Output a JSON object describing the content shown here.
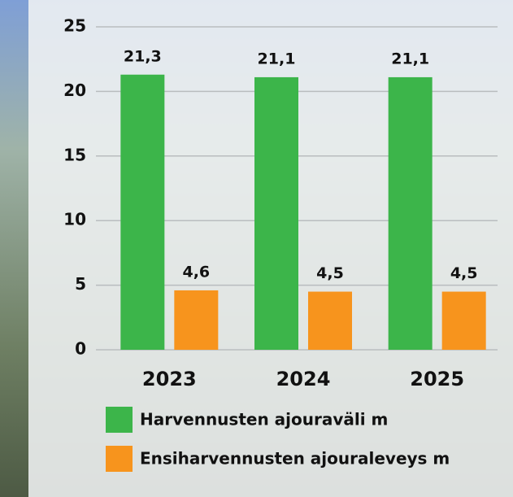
{
  "chart_data": {
    "type": "bar",
    "categories": [
      "2023",
      "2024",
      "2025"
    ],
    "series": [
      {
        "name": "Harvennusten ajouraväli m",
        "color": "#3cb54a",
        "values": [
          21.3,
          21.1,
          21.1
        ],
        "value_labels": [
          "21,3",
          "21,1",
          "21,1"
        ]
      },
      {
        "name": "Ensiharvennusten ajouraleveys m",
        "color": "#f7941d",
        "values": [
          4.6,
          4.5,
          4.5
        ],
        "value_labels": [
          "4,6",
          "4,5",
          "4,5"
        ]
      }
    ],
    "ylim": [
      0,
      25
    ],
    "yticks": [
      0,
      5,
      10,
      15,
      20,
      25
    ],
    "grid": true
  }
}
